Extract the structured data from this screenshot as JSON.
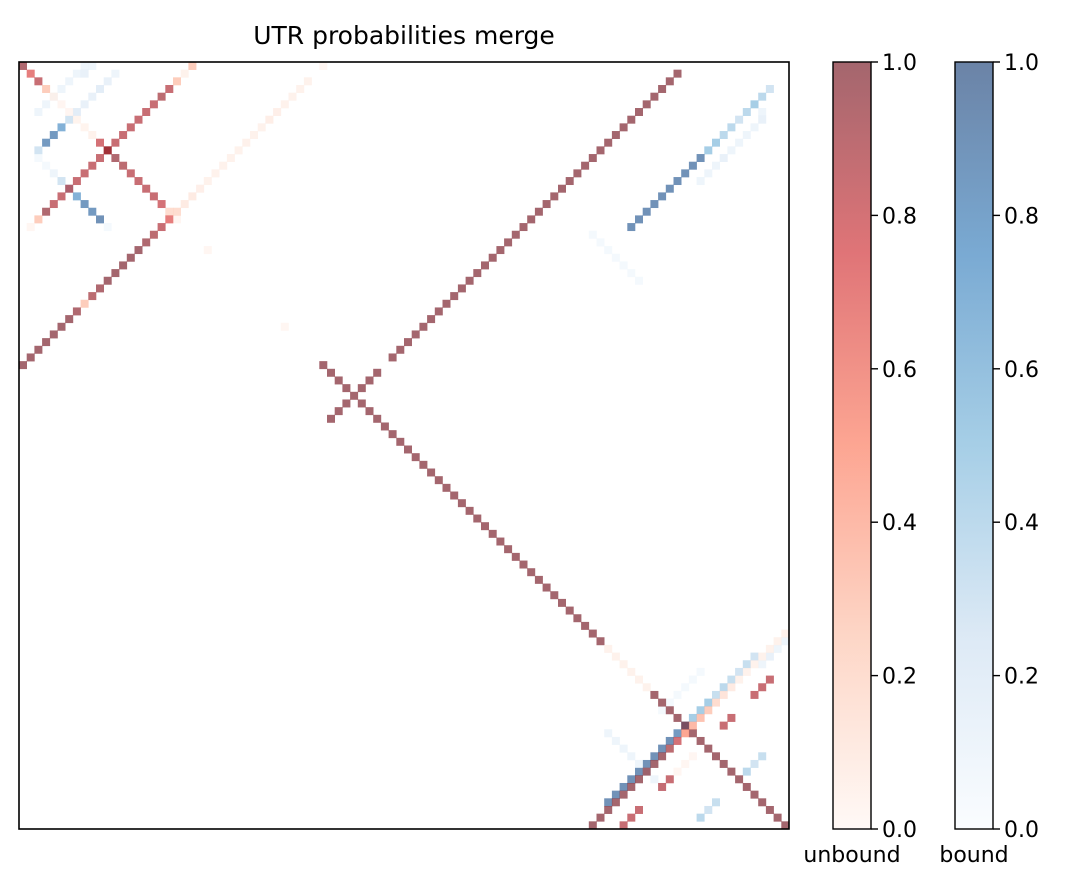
{
  "chart_data": {
    "type": "heatmap",
    "title": "UTR probabilities merge",
    "n": 100,
    "axes_ticks": "none",
    "colorbars": [
      {
        "label": "unbound",
        "colormap": "Reds",
        "alpha": 0.6,
        "stops": [
          "#fff5f0",
          "#fcbba1",
          "#fb6a4a",
          "#cb181d",
          "#67000d"
        ],
        "ticks": [
          "0.0",
          "0.2",
          "0.4",
          "0.6",
          "0.8",
          "1.0"
        ],
        "range": [
          0,
          1
        ]
      },
      {
        "label": "bound",
        "colormap": "Blues",
        "alpha": 0.6,
        "stops": [
          "#f7fbff",
          "#c6dbef",
          "#6baed6",
          "#2171b5",
          "#08306b"
        ],
        "ticks": [
          "0.0",
          "0.2",
          "0.4",
          "0.6",
          "0.8",
          "1.0"
        ],
        "range": [
          0,
          1
        ]
      }
    ],
    "unbound_cells": [
      [
        0,
        0,
        0.95
      ],
      [
        1,
        1,
        0.7
      ],
      [
        2,
        2,
        0.85
      ],
      [
        3,
        3,
        0.3
      ],
      [
        4,
        4,
        0.05
      ],
      [
        5,
        5,
        0.03
      ],
      [
        6,
        6,
        0.03
      ],
      [
        7,
        7,
        0.04
      ],
      [
        8,
        8,
        0.04
      ],
      [
        9,
        9,
        0.05
      ],
      [
        10,
        10,
        0.8
      ],
      [
        11,
        11,
        0.9
      ],
      [
        12,
        12,
        0.95
      ],
      [
        13,
        13,
        0.9
      ],
      [
        14,
        14,
        0.85
      ],
      [
        15,
        15,
        0.85
      ],
      [
        16,
        16,
        0.85
      ],
      [
        17,
        17,
        0.85
      ],
      [
        18,
        18,
        0.8
      ],
      [
        19,
        19,
        0.2
      ],
      [
        20,
        20,
        0.03
      ],
      [
        24,
        24,
        0.02
      ],
      [
        34,
        34,
        0.02
      ],
      [
        39,
        39,
        1
      ],
      [
        40,
        40,
        1
      ],
      [
        41,
        41,
        1
      ],
      [
        42,
        42,
        1
      ],
      [
        43,
        43,
        1
      ],
      [
        44,
        44,
        1
      ],
      [
        45,
        45,
        1
      ],
      [
        46,
        46,
        1
      ],
      [
        47,
        47,
        1
      ],
      [
        48,
        48,
        1
      ],
      [
        49,
        49,
        1
      ],
      [
        50,
        50,
        1
      ],
      [
        51,
        51,
        1
      ],
      [
        52,
        52,
        1
      ],
      [
        53,
        53,
        1
      ],
      [
        54,
        54,
        1
      ],
      [
        55,
        55,
        1
      ],
      [
        56,
        56,
        1
      ],
      [
        57,
        57,
        1
      ],
      [
        58,
        58,
        1
      ],
      [
        59,
        59,
        1
      ],
      [
        60,
        60,
        1
      ],
      [
        61,
        61,
        1
      ],
      [
        62,
        62,
        1
      ],
      [
        63,
        63,
        1
      ],
      [
        64,
        64,
        1
      ],
      [
        65,
        65,
        1
      ],
      [
        66,
        66,
        1
      ],
      [
        67,
        67,
        1
      ],
      [
        68,
        68,
        1
      ],
      [
        69,
        69,
        1
      ],
      [
        70,
        70,
        1
      ],
      [
        71,
        71,
        1
      ],
      [
        72,
        72,
        1
      ],
      [
        73,
        73,
        1
      ],
      [
        74,
        74,
        1
      ],
      [
        75,
        75,
        1
      ],
      [
        76,
        76,
        0.05
      ],
      [
        77,
        77,
        0.05
      ],
      [
        78,
        78,
        0.05
      ],
      [
        79,
        79,
        0.05
      ],
      [
        80,
        80,
        0.05
      ],
      [
        81,
        81,
        0.05
      ],
      [
        82,
        82,
        1
      ],
      [
        83,
        83,
        1
      ],
      [
        84,
        84,
        1
      ],
      [
        85,
        85,
        1
      ],
      [
        86,
        86,
        1
      ],
      [
        87,
        87,
        1
      ],
      [
        88,
        88,
        1
      ],
      [
        89,
        89,
        1
      ],
      [
        90,
        90,
        1
      ],
      [
        91,
        91,
        1
      ],
      [
        92,
        92,
        1
      ],
      [
        93,
        93,
        1
      ],
      [
        94,
        94,
        1
      ],
      [
        95,
        95,
        1
      ],
      [
        96,
        96,
        1
      ],
      [
        97,
        97,
        1
      ],
      [
        98,
        98,
        1
      ],
      [
        99,
        99,
        1
      ],
      [
        0,
        22,
        0.3
      ],
      [
        1,
        21,
        0.05
      ],
      [
        2,
        20,
        0.3
      ],
      [
        3,
        19,
        0.85
      ],
      [
        4,
        18,
        0.9
      ],
      [
        5,
        17,
        0.85
      ],
      [
        6,
        16,
        0.85
      ],
      [
        7,
        15,
        0.85
      ],
      [
        8,
        14,
        0.85
      ],
      [
        9,
        13,
        0.85
      ],
      [
        10,
        12,
        0.85
      ],
      [
        11,
        11,
        0.9
      ],
      [
        12,
        10,
        0.85
      ],
      [
        13,
        9,
        0.85
      ],
      [
        14,
        8,
        0.85
      ],
      [
        15,
        7,
        0.85
      ],
      [
        16,
        6,
        0.85
      ],
      [
        17,
        5,
        0.85
      ],
      [
        18,
        4,
        0.85
      ],
      [
        19,
        3,
        0.95
      ],
      [
        20,
        2,
        0.3
      ],
      [
        21,
        1,
        0.02
      ],
      [
        0,
        39,
        0.02
      ],
      [
        2,
        37,
        0.05
      ],
      [
        3,
        36,
        0.05
      ],
      [
        4,
        35,
        0.05
      ],
      [
        5,
        34,
        0.05
      ],
      [
        6,
        33,
        0.07
      ],
      [
        7,
        32,
        0.08
      ],
      [
        8,
        31,
        0.05
      ],
      [
        9,
        30,
        0.05
      ],
      [
        10,
        29,
        0.06
      ],
      [
        11,
        28,
        0.05
      ],
      [
        12,
        27,
        0.05
      ],
      [
        13,
        26,
        0.05
      ],
      [
        14,
        25,
        0.05
      ],
      [
        15,
        24,
        0.05
      ],
      [
        16,
        23,
        0.07
      ],
      [
        17,
        22,
        0.1
      ],
      [
        18,
        21,
        0.1
      ],
      [
        19,
        20,
        0.2
      ],
      [
        20,
        19,
        0.7
      ],
      [
        21,
        18,
        0.85
      ],
      [
        22,
        17,
        0.9
      ],
      [
        23,
        16,
        0.95
      ],
      [
        24,
        15,
        1
      ],
      [
        25,
        14,
        1
      ],
      [
        26,
        13,
        1
      ],
      [
        27,
        12,
        1
      ],
      [
        28,
        11,
        1
      ],
      [
        29,
        10,
        0.95
      ],
      [
        30,
        9,
        0.9
      ],
      [
        31,
        8,
        0.3
      ],
      [
        32,
        7,
        0.95
      ],
      [
        33,
        6,
        1
      ],
      [
        34,
        5,
        1
      ],
      [
        35,
        4,
        1
      ],
      [
        36,
        3,
        1
      ],
      [
        37,
        2,
        1
      ],
      [
        38,
        1,
        1
      ],
      [
        39,
        0,
        1
      ],
      [
        46,
        40,
        1
      ],
      [
        45,
        41,
        1
      ],
      [
        44,
        42,
        1
      ],
      [
        42,
        44,
        1
      ],
      [
        41,
        45,
        1
      ],
      [
        40,
        46,
        1
      ],
      [
        38,
        48,
        1
      ],
      [
        37,
        49,
        1
      ],
      [
        36,
        50,
        1
      ],
      [
        35,
        51,
        1
      ],
      [
        34,
        52,
        1
      ],
      [
        33,
        53,
        1
      ],
      [
        32,
        54,
        1
      ],
      [
        31,
        55,
        1
      ],
      [
        30,
        56,
        1
      ],
      [
        29,
        57,
        1
      ],
      [
        28,
        58,
        1
      ],
      [
        27,
        59,
        1
      ],
      [
        26,
        60,
        1
      ],
      [
        25,
        61,
        1
      ],
      [
        24,
        62,
        1
      ],
      [
        23,
        63,
        1
      ],
      [
        22,
        64,
        1
      ],
      [
        21,
        65,
        1
      ],
      [
        20,
        66,
        1
      ],
      [
        19,
        67,
        1
      ],
      [
        18,
        68,
        1
      ],
      [
        17,
        69,
        1
      ],
      [
        16,
        70,
        1
      ],
      [
        15,
        71,
        1
      ],
      [
        14,
        72,
        1
      ],
      [
        13,
        73,
        1
      ],
      [
        12,
        74,
        1
      ],
      [
        11,
        75,
        1
      ],
      [
        10,
        76,
        1
      ],
      [
        9,
        77,
        1
      ],
      [
        8,
        78,
        1
      ],
      [
        7,
        79,
        1
      ],
      [
        6,
        80,
        1
      ],
      [
        5,
        81,
        1
      ],
      [
        4,
        82,
        1
      ],
      [
        3,
        83,
        1
      ],
      [
        2,
        84,
        1
      ],
      [
        1,
        85,
        1
      ],
      [
        74,
        99,
        0.05
      ],
      [
        75,
        98,
        0.05
      ],
      [
        76,
        97,
        0.05
      ],
      [
        77,
        96,
        0.05
      ],
      [
        78,
        95,
        0.05
      ],
      [
        79,
        94,
        0.05
      ],
      [
        80,
        93,
        0.05
      ],
      [
        81,
        92,
        0.1
      ],
      [
        82,
        91,
        0.15
      ],
      [
        83,
        90,
        0.2
      ],
      [
        84,
        89,
        0.3
      ],
      [
        85,
        88,
        0.35
      ],
      [
        86,
        87,
        0.4
      ],
      [
        87,
        86,
        0.5
      ],
      [
        88,
        85,
        0.8
      ],
      [
        89,
        84,
        0.9
      ],
      [
        90,
        83,
        1
      ],
      [
        91,
        82,
        1
      ],
      [
        92,
        81,
        1
      ],
      [
        93,
        80,
        1
      ],
      [
        94,
        79,
        1
      ],
      [
        95,
        78,
        1
      ],
      [
        96,
        77,
        1
      ],
      [
        97,
        76,
        1
      ],
      [
        98,
        75,
        1
      ],
      [
        99,
        74,
        1
      ],
      [
        99,
        78,
        0.85
      ],
      [
        98,
        79,
        0.85
      ],
      [
        97,
        80,
        0.85
      ],
      [
        94,
        83,
        0.85
      ],
      [
        93,
        84,
        0.85
      ],
      [
        92,
        85,
        0.02
      ],
      [
        91,
        86,
        0.02
      ],
      [
        90,
        87,
        0.02
      ],
      [
        86,
        91,
        0.85
      ],
      [
        85,
        92,
        0.85
      ],
      [
        82,
        95,
        0.85
      ],
      [
        81,
        96,
        0.85
      ],
      [
        80,
        97,
        0.85
      ]
    ],
    "bound_cells": [
      [
        0,
        8,
        0.1
      ],
      [
        0,
        9,
        0.1
      ],
      [
        1,
        7,
        0.1
      ],
      [
        1,
        8,
        0.15
      ],
      [
        2,
        6,
        0.1
      ],
      [
        3,
        5,
        0.1
      ],
      [
        4,
        4,
        0.05
      ],
      [
        5,
        3,
        0.1
      ],
      [
        6,
        2,
        0.1
      ],
      [
        1,
        12,
        0.1
      ],
      [
        2,
        11,
        0.15
      ],
      [
        3,
        10,
        0.2
      ],
      [
        4,
        9,
        0.15
      ],
      [
        5,
        8,
        0.15
      ],
      [
        6,
        7,
        0.2
      ],
      [
        7,
        6,
        0.3
      ],
      [
        8,
        5,
        0.7
      ],
      [
        9,
        4,
        0.85
      ],
      [
        10,
        3,
        0.85
      ],
      [
        11,
        2,
        0.3
      ],
      [
        12,
        2,
        0.05
      ],
      [
        13,
        3,
        0.05
      ],
      [
        14,
        4,
        0.1
      ],
      [
        15,
        5,
        0.3
      ],
      [
        16,
        6,
        0.4
      ],
      [
        17,
        7,
        0.7
      ],
      [
        18,
        8,
        0.85
      ],
      [
        19,
        9,
        0.85
      ],
      [
        20,
        10,
        0.9
      ],
      [
        21,
        11,
        0.05
      ],
      [
        3,
        97,
        0.3
      ],
      [
        4,
        96,
        0.4
      ],
      [
        5,
        95,
        0.5
      ],
      [
        6,
        94,
        0.4
      ],
      [
        7,
        93,
        0.3
      ],
      [
        8,
        92,
        0.4
      ],
      [
        9,
        91,
        0.4
      ],
      [
        10,
        90,
        0.5
      ],
      [
        11,
        89,
        0.5
      ],
      [
        12,
        88,
        0.9
      ],
      [
        13,
        87,
        0.9
      ],
      [
        14,
        86,
        0.9
      ],
      [
        15,
        85,
        0.9
      ],
      [
        16,
        84,
        0.9
      ],
      [
        17,
        83,
        0.9
      ],
      [
        18,
        82,
        0.9
      ],
      [
        19,
        81,
        0.9
      ],
      [
        20,
        80,
        0.9
      ],
      [
        21,
        79,
        0.9
      ],
      [
        6,
        96,
        0.1
      ],
      [
        7,
        96,
        0.15
      ],
      [
        8,
        95,
        0.1
      ],
      [
        9,
        94,
        0.1
      ],
      [
        10,
        93,
        0.1
      ],
      [
        11,
        92,
        0.1
      ],
      [
        12,
        91,
        0.15
      ],
      [
        13,
        90,
        0.1
      ],
      [
        14,
        89,
        0.1
      ],
      [
        15,
        88,
        0.1
      ],
      [
        22,
        74,
        0.05
      ],
      [
        23,
        75,
        0.05
      ],
      [
        24,
        76,
        0.05
      ],
      [
        25,
        77,
        0.05
      ],
      [
        26,
        78,
        0.05
      ],
      [
        27,
        79,
        0.05
      ],
      [
        28,
        80,
        0.05
      ],
      [
        77,
        95,
        0.3
      ],
      [
        78,
        94,
        0.35
      ],
      [
        79,
        93,
        0.3
      ],
      [
        80,
        92,
        0.35
      ],
      [
        81,
        91,
        0.4
      ],
      [
        82,
        90,
        0.35
      ],
      [
        83,
        89,
        0.5
      ],
      [
        84,
        88,
        0.5
      ],
      [
        85,
        87,
        0.5
      ],
      [
        86,
        86,
        0.6
      ],
      [
        87,
        85,
        0.85
      ],
      [
        88,
        84,
        0.9
      ],
      [
        89,
        83,
        0.9
      ],
      [
        90,
        82,
        0.9
      ],
      [
        91,
        81,
        0.9
      ],
      [
        92,
        80,
        0.9
      ],
      [
        93,
        79,
        0.9
      ],
      [
        94,
        78,
        0.9
      ],
      [
        95,
        77,
        0.9
      ],
      [
        96,
        76,
        0.9
      ],
      [
        87,
        76,
        0.1
      ],
      [
        88,
        77,
        0.1
      ],
      [
        89,
        78,
        0.1
      ],
      [
        90,
        79,
        0.1
      ],
      [
        91,
        80,
        0.1
      ],
      [
        92,
        81,
        0.1
      ],
      [
        93,
        82,
        0.1
      ],
      [
        94,
        83,
        0.05
      ],
      [
        98,
        88,
        0.4
      ],
      [
        97,
        89,
        0.3
      ],
      [
        96,
        90,
        0.35
      ],
      [
        92,
        94,
        0.4
      ],
      [
        91,
        95,
        0.3
      ],
      [
        90,
        96,
        0.35
      ],
      [
        78,
        96,
        0.1
      ],
      [
        77,
        97,
        0.15
      ],
      [
        76,
        98,
        0.1
      ],
      [
        75,
        99,
        0.1
      ],
      [
        79,
        88,
        0.05
      ],
      [
        80,
        87,
        0.05
      ],
      [
        81,
        86,
        0.05
      ],
      [
        82,
        85,
        0.05
      ],
      [
        83,
        84,
        0.05
      ],
      [
        84,
        83,
        0.05
      ]
    ]
  }
}
